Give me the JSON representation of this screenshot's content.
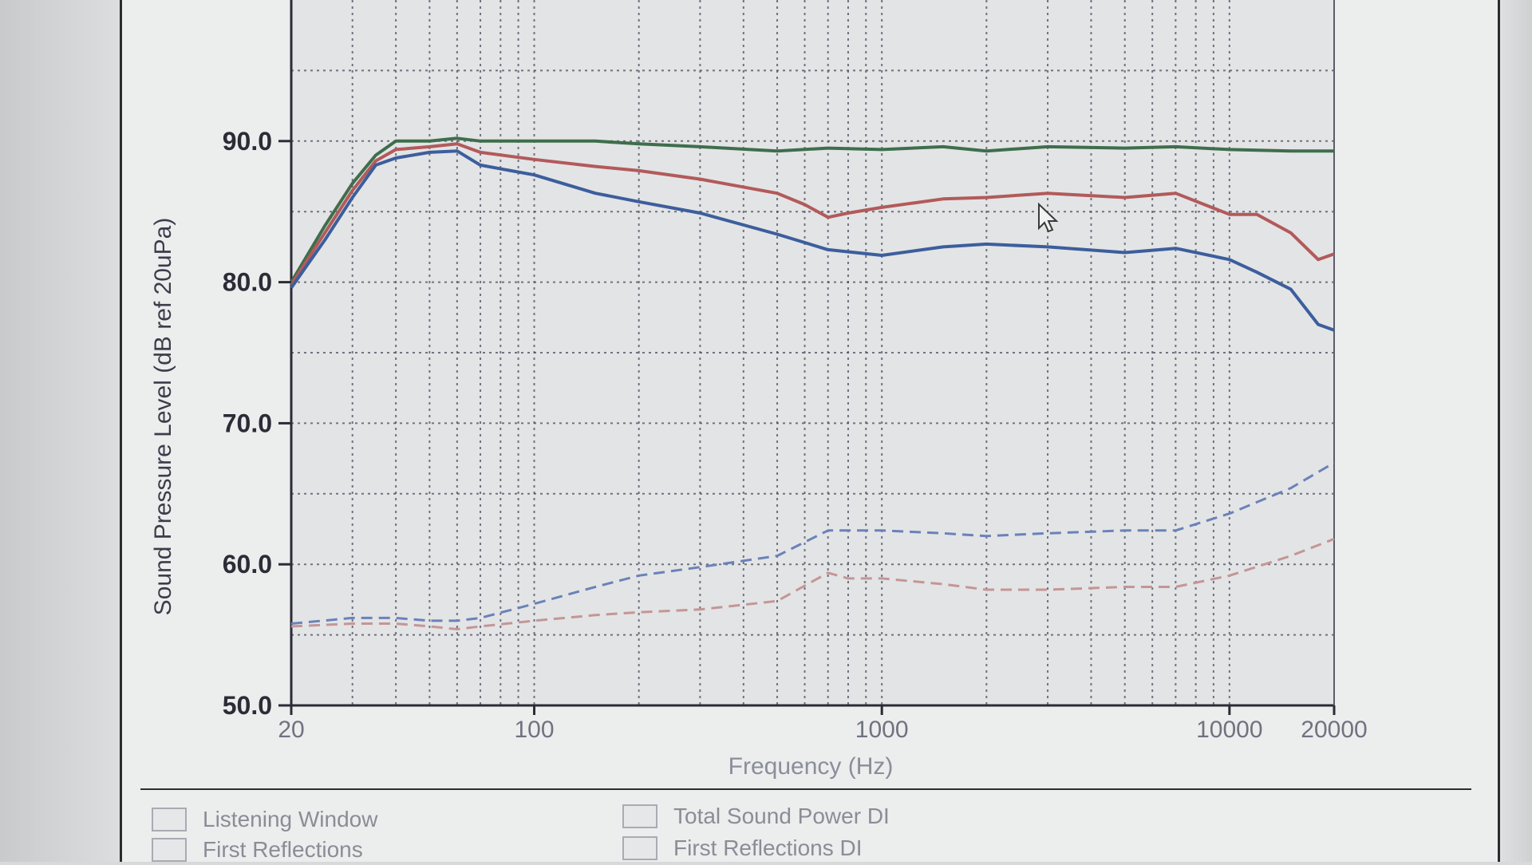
{
  "chart_data": {
    "type": "line",
    "ylabel": "Sound Pressure Level (dB ref 20uPa)",
    "xlabel": "Frequency (Hz)",
    "x_scale": "log",
    "xlim": [
      20,
      20000
    ],
    "ylim": [
      50,
      100
    ],
    "y_ticks": [
      50,
      60,
      70,
      80,
      90
    ],
    "y_tick_labels": [
      "50.0",
      "60.0",
      "70.0",
      "80.0",
      "90.0"
    ],
    "x_ticks": [
      20,
      100,
      1000,
      10000,
      20000
    ],
    "x_tick_labels": [
      "20",
      "100",
      "1000",
      "10000",
      "20000"
    ],
    "grid": true,
    "series": [
      {
        "color": "#3f6e4c",
        "style": "solid",
        "x": [
          20,
          25,
          30,
          35,
          40,
          50,
          60,
          70,
          100,
          150,
          200,
          300,
          500,
          700,
          1000,
          1500,
          2000,
          3000,
          5000,
          7000,
          10000,
          15000,
          20000
        ],
        "values": [
          80.0,
          84.0,
          87.0,
          89.0,
          90.0,
          90.0,
          90.2,
          90.0,
          90.0,
          90.0,
          89.8,
          89.6,
          89.3,
          89.5,
          89.4,
          89.6,
          89.3,
          89.6,
          89.5,
          89.6,
          89.4,
          89.3,
          89.3
        ]
      },
      {
        "color": "#b25a5a",
        "style": "solid",
        "x": [
          20,
          25,
          30,
          35,
          40,
          50,
          60,
          70,
          100,
          150,
          200,
          300,
          500,
          600,
          700,
          800,
          1000,
          1500,
          2000,
          3000,
          5000,
          7000,
          10000,
          12000,
          15000,
          18000,
          20000
        ],
        "values": [
          79.8,
          83.5,
          86.5,
          88.6,
          89.4,
          89.6,
          89.8,
          89.2,
          88.7,
          88.2,
          87.9,
          87.3,
          86.3,
          85.5,
          84.6,
          84.9,
          85.3,
          85.9,
          86.0,
          86.3,
          86.0,
          86.3,
          84.8,
          84.8,
          83.5,
          81.6,
          82.0
        ]
      },
      {
        "color": "#3c5e9c",
        "style": "solid",
        "x": [
          20,
          25,
          30,
          35,
          40,
          50,
          60,
          70,
          100,
          150,
          200,
          300,
          500,
          700,
          1000,
          1500,
          2000,
          3000,
          5000,
          7000,
          10000,
          12000,
          15000,
          18000,
          20000
        ],
        "values": [
          79.6,
          83.0,
          86.0,
          88.3,
          88.8,
          89.2,
          89.3,
          88.3,
          87.6,
          86.3,
          85.7,
          84.9,
          83.4,
          82.3,
          81.9,
          82.5,
          82.7,
          82.5,
          82.1,
          82.4,
          81.6,
          80.7,
          79.5,
          77.0,
          76.6
        ]
      },
      {
        "color": "#6a82b8",
        "style": "dashed",
        "x": [
          20,
          30,
          40,
          50,
          60,
          70,
          100,
          150,
          200,
          300,
          500,
          700,
          1000,
          1500,
          2000,
          3000,
          5000,
          7000,
          10000,
          15000,
          20000
        ],
        "values": [
          55.8,
          56.2,
          56.2,
          56.0,
          56.0,
          56.2,
          57.2,
          58.4,
          59.2,
          59.8,
          60.6,
          62.4,
          62.4,
          62.2,
          62.0,
          62.2,
          62.4,
          62.4,
          63.6,
          65.4,
          67.2
        ]
      },
      {
        "color": "#c49696",
        "style": "dashed",
        "x": [
          20,
          30,
          40,
          50,
          60,
          70,
          100,
          150,
          200,
          300,
          500,
          700,
          800,
          1000,
          1500,
          2000,
          3000,
          5000,
          7000,
          10000,
          15000,
          20000
        ],
        "values": [
          55.6,
          55.8,
          55.8,
          55.6,
          55.4,
          55.6,
          56.0,
          56.4,
          56.6,
          56.8,
          57.4,
          59.4,
          59.0,
          59.0,
          58.6,
          58.2,
          58.2,
          58.4,
          58.4,
          59.2,
          60.6,
          61.8
        ]
      }
    ]
  },
  "legend": {
    "items": [
      {
        "label": "Listening Window",
        "color": "#8f92a0"
      },
      {
        "label": "Total Sound Power DI",
        "color": "#8f92a0"
      },
      {
        "label": "First Reflections",
        "color": "#8f92a0"
      },
      {
        "label": "First Reflections DI",
        "color": "#8f92a0"
      }
    ]
  },
  "cursor": {
    "name": "mouse-pointer-icon"
  }
}
